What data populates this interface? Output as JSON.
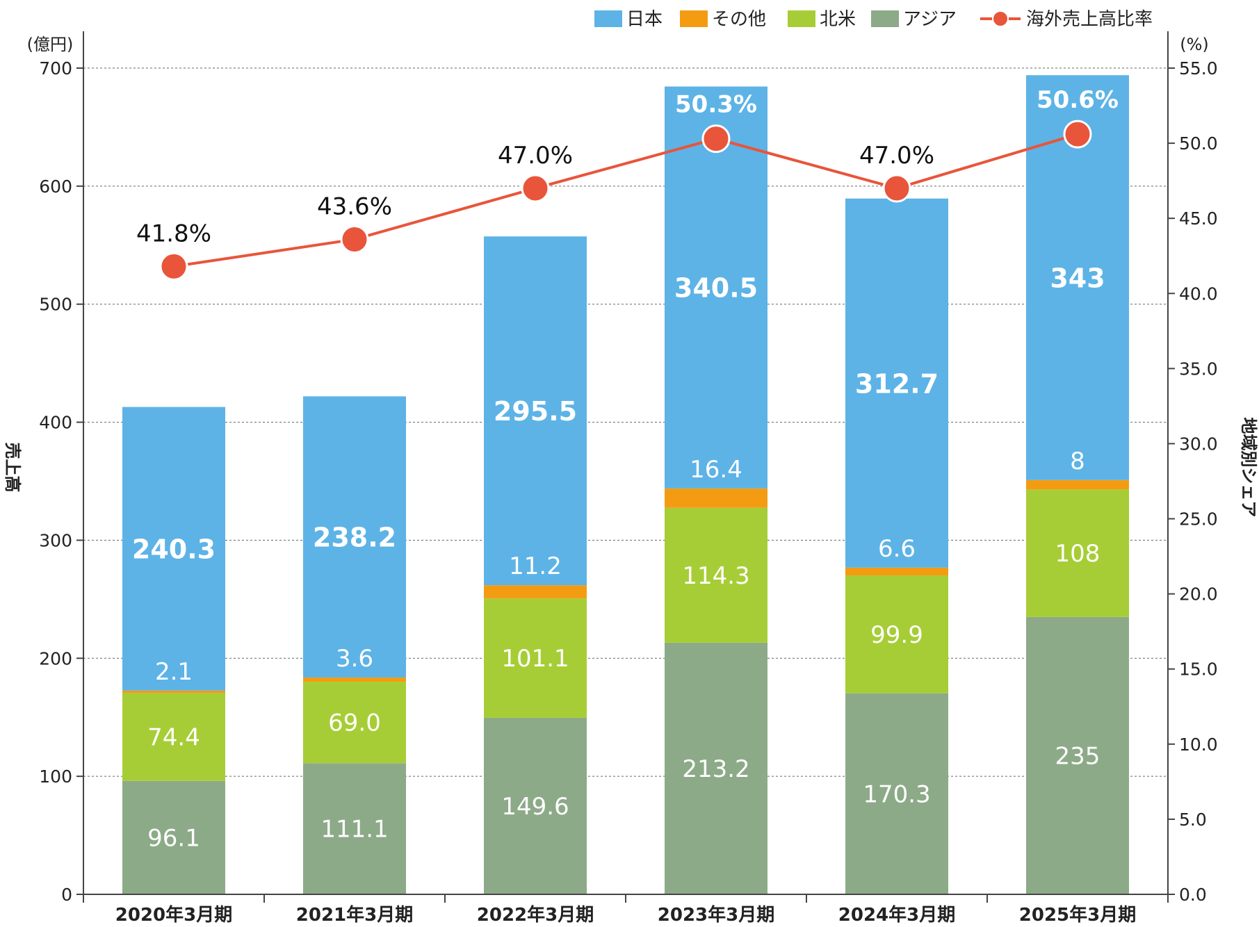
{
  "chart_data": {
    "type": "bar",
    "stacked": true,
    "categories": [
      "2020年3月期",
      "2021年3月期",
      "2022年3月期",
      "2023年3月期",
      "2024年3月期",
      "2025年3月期"
    ],
    "series": [
      {
        "name": "アジア",
        "color": "#8daa88",
        "values": [
          96.1,
          111.1,
          149.6,
          213.2,
          170.3,
          235
        ]
      },
      {
        "name": "北米",
        "color": "#a7cd36",
        "values": [
          74.4,
          69.0,
          101.1,
          114.3,
          99.9,
          108
        ]
      },
      {
        "name": "その他",
        "color": "#f39c12",
        "values": [
          2.1,
          3.6,
          11.2,
          16.4,
          6.6,
          8
        ]
      },
      {
        "name": "日本",
        "color": "#5db3e6",
        "values": [
          240.3,
          238.2,
          295.5,
          340.5,
          312.7,
          343
        ]
      }
    ],
    "labels": {
      "アジア": [
        "96.1",
        "111.1",
        "149.6",
        "213.2",
        "170.3",
        "235"
      ],
      "北米": [
        "74.4",
        "69.0",
        "101.1",
        "114.3",
        "99.9",
        "108"
      ],
      "その他": [
        "2.1",
        "3.6",
        "11.2",
        "16.4",
        "6.6",
        "8"
      ],
      "日本": [
        "240.3",
        "238.2",
        "295.5",
        "340.5",
        "312.7",
        "343"
      ]
    },
    "line_series": {
      "name": "海外売上高比率",
      "color": "#e8553a",
      "values": [
        41.8,
        43.6,
        47.0,
        50.3,
        47.0,
        50.6
      ],
      "labels": [
        "41.8%",
        "43.6%",
        "47.0%",
        "50.3%",
        "47.0%",
        "50.6%"
      ]
    },
    "legend": [
      "日本",
      "その他",
      "北米",
      "アジア",
      "海外売上高比率"
    ],
    "legend_position": "top-right",
    "ylabel": "売上高",
    "ylabel_unit": "(億円)",
    "ylim": [
      0,
      700
    ],
    "yticks": [
      "0",
      "100",
      "200",
      "300",
      "400",
      "500",
      "600",
      "700"
    ],
    "y2label": "地域別シェア",
    "y2label_unit": "(%)",
    "y2lim": [
      0,
      55
    ],
    "y2ticks": [
      "0.0",
      "5.0",
      "10.0",
      "15.0",
      "20.0",
      "25.0",
      "30.0",
      "35.0",
      "40.0",
      "45.0",
      "50.0",
      "55.0"
    ],
    "grid": true
  }
}
